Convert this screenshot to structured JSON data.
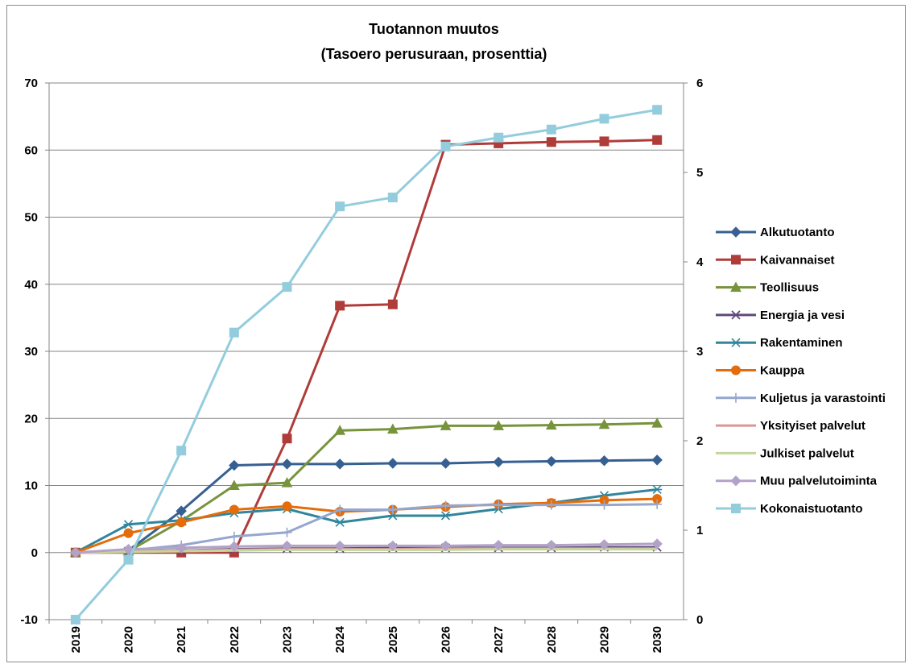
{
  "chart_data": {
    "type": "line",
    "title_lines": [
      "Tuotannon muutos",
      "(Tasoero perusuraan, prosenttia)"
    ],
    "x": [
      "2019",
      "2020",
      "2021",
      "2022",
      "2023",
      "2024",
      "2025",
      "2026",
      "2027",
      "2028",
      "2029",
      "2030"
    ],
    "y_left": {
      "range": [
        -10,
        70
      ],
      "ticks": [
        -10,
        0,
        10,
        20,
        30,
        40,
        50,
        60,
        70
      ]
    },
    "y_right": {
      "range": [
        0,
        6
      ],
      "ticks": [
        0,
        1,
        2,
        3,
        4,
        5,
        6
      ]
    },
    "grid": true,
    "legend_position": "right",
    "series": [
      {
        "name": "Alkutuotanto",
        "axis": "left",
        "color": "#376092",
        "marker": "diamond",
        "values": [
          0,
          0.3,
          6.2,
          13.0,
          13.2,
          13.2,
          13.3,
          13.3,
          13.5,
          13.6,
          13.7,
          13.8
        ]
      },
      {
        "name": "Kaivannaiset",
        "axis": "left",
        "color": "#b03c3a",
        "marker": "square",
        "values": [
          0,
          0,
          0,
          0,
          17.0,
          36.8,
          37.0,
          60.8,
          61.0,
          61.2,
          61.3,
          61.5
        ]
      },
      {
        "name": "Teollisuus",
        "axis": "left",
        "color": "#77933c",
        "marker": "triangle",
        "values": [
          0,
          0.2,
          4.7,
          10.0,
          10.4,
          18.2,
          18.4,
          18.9,
          18.9,
          19.0,
          19.1,
          19.3
        ]
      },
      {
        "name": "Energia ja vesi",
        "axis": "left",
        "color": "#604a7b",
        "marker": "x",
        "values": [
          0,
          0.2,
          0.3,
          0.5,
          0.6,
          0.6,
          0.7,
          0.7,
          0.7,
          0.7,
          0.8,
          0.8
        ]
      },
      {
        "name": "Rakentaminen",
        "axis": "left",
        "color": "#31859c",
        "marker": "star",
        "values": [
          0,
          4.2,
          4.8,
          5.9,
          6.5,
          4.5,
          5.5,
          5.5,
          6.5,
          7.4,
          8.5,
          9.4
        ]
      },
      {
        "name": "Kauppa",
        "axis": "left",
        "color": "#e46c0a",
        "marker": "circle",
        "values": [
          0,
          2.9,
          4.5,
          6.4,
          6.9,
          6.1,
          6.4,
          6.8,
          7.2,
          7.4,
          7.8,
          8.0
        ]
      },
      {
        "name": "Kuljetus ja varastointi",
        "axis": "left",
        "color": "#95a7cf",
        "marker": "plus",
        "values": [
          0,
          0.3,
          1.1,
          2.4,
          3.0,
          6.4,
          6.4,
          7.0,
          7.1,
          7.1,
          7.1,
          7.2
        ]
      },
      {
        "name": "Yksityiset palvelut",
        "axis": "left",
        "color": "#d99795",
        "marker": "none",
        "values": [
          0,
          0.2,
          0.3,
          0.4,
          0.5,
          0.5,
          0.5,
          0.6,
          0.6,
          0.6,
          0.6,
          0.6
        ]
      },
      {
        "name": "Julkiset palvelut",
        "axis": "left",
        "color": "#c3d69b",
        "marker": "none",
        "values": [
          0,
          0.1,
          0.2,
          0.3,
          0.4,
          0.4,
          0.4,
          0.4,
          0.5,
          0.5,
          0.5,
          0.5
        ]
      },
      {
        "name": "Muu palvelutoiminta",
        "axis": "left",
        "color": "#b3a2c7",
        "marker": "diamond",
        "values": [
          0,
          0.5,
          0.7,
          0.9,
          1.0,
          1.0,
          1.0,
          1.0,
          1.1,
          1.1,
          1.2,
          1.3
        ]
      },
      {
        "name": "Kokonaistuotanto",
        "axis": "right",
        "color": "#93cddd",
        "marker": "square",
        "values": [
          0,
          0.67,
          1.89,
          3.21,
          3.72,
          4.62,
          4.72,
          5.29,
          5.39,
          5.48,
          5.6,
          5.7
        ]
      }
    ]
  }
}
